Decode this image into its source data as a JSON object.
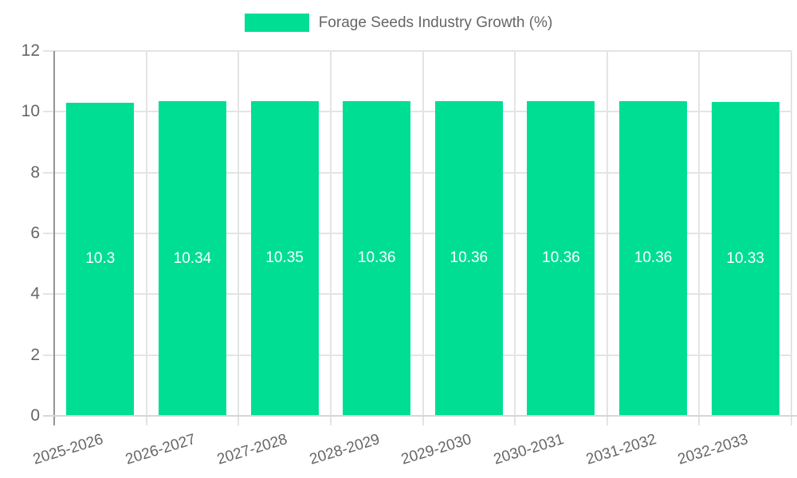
{
  "chart_data": {
    "type": "bar",
    "title": "Forage Seeds Industry Growth (%)",
    "legend_position": "top",
    "categories": [
      "2025-2026",
      "2026-2027",
      "2027-2028",
      "2028-2029",
      "2029-2030",
      "2030-2031",
      "2031-2032",
      "2032-2033"
    ],
    "values": [
      10.3,
      10.34,
      10.35,
      10.36,
      10.36,
      10.36,
      10.36,
      10.33
    ],
    "ylim": [
      0,
      12
    ],
    "yticks": [
      0,
      2,
      4,
      6,
      8,
      10,
      12
    ],
    "grid": true,
    "colors": {
      "bar": "#00de94",
      "value_label": "#ffffff",
      "axis_text": "#666666",
      "gridline": "#e4e4e4",
      "y_axis_line": "#949494"
    }
  }
}
